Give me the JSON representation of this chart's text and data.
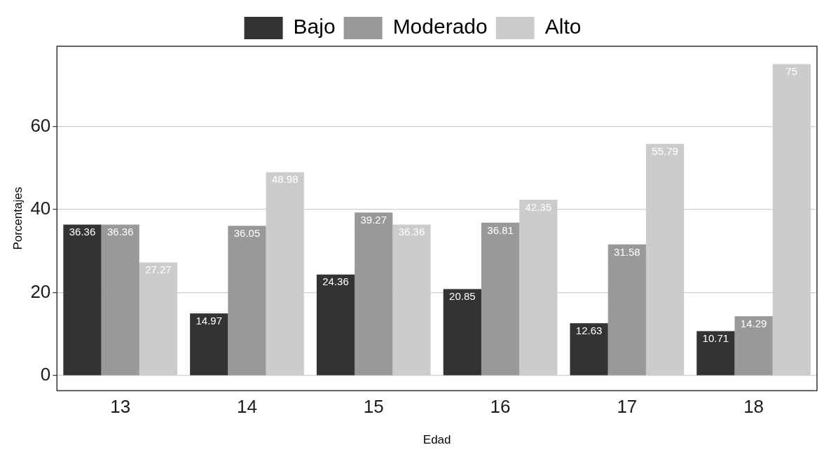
{
  "chart_data": {
    "type": "bar",
    "xlabel": "Edad",
    "ylabel": "Porcentajes",
    "categories": [
      "13",
      "14",
      "15",
      "16",
      "17",
      "18"
    ],
    "series": [
      {
        "name": "Bajo",
        "color": "#333333",
        "values": [
          36.36,
          14.97,
          24.36,
          20.85,
          12.63,
          10.71
        ]
      },
      {
        "name": "Moderado",
        "color": "#999999",
        "values": [
          36.36,
          36.05,
          39.27,
          36.81,
          31.58,
          14.29
        ]
      },
      {
        "name": "Alto",
        "color": "#cccccc",
        "values": [
          27.27,
          48.98,
          36.36,
          42.35,
          55.79,
          75
        ]
      }
    ],
    "ylim": [
      -3.6,
      79.3
    ],
    "yticks": [
      0,
      20,
      40,
      60
    ],
    "grid": "y",
    "legend": "top",
    "data_labels": true
  }
}
